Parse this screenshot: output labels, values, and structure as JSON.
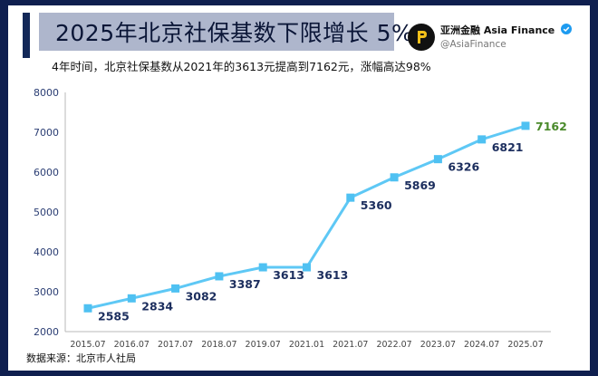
{
  "header": {
    "title": "2025年北京社保基数下限增长 5%",
    "subtitle": "4年时间，北京社保基数从2021年的3613元提高到7162元，涨幅高达98%"
  },
  "brand": {
    "name": "亚洲金融 Asia Finance",
    "handle": "@AsiaFinance",
    "logo_icon": "asia-finance-logo-icon",
    "verified_icon": "verified-badge-icon"
  },
  "footer": {
    "source": "数据来源：北京市人社局"
  },
  "colors": {
    "background": "#0f1f4f",
    "line": "#5ec8f5",
    "point": "#4fc1f2",
    "label": "#1c2e5e",
    "highlight_label": "#4a8a2b"
  },
  "chart_data": {
    "type": "line",
    "title": "",
    "xlabel": "",
    "ylabel": "",
    "ylim": [
      2000,
      8000
    ],
    "yticks": [
      "2000",
      "3000",
      "4000",
      "5000",
      "6000",
      "7000",
      "8000"
    ],
    "grid": false,
    "categories": [
      "2015.07",
      "2016.07",
      "2017.07",
      "2018.07",
      "2019.07",
      "2021.01",
      "2021.07",
      "2022.07",
      "2023.07",
      "2024.07",
      "2025.07"
    ],
    "series": [
      {
        "values": [
          2585,
          2834,
          3082,
          3387,
          3613,
          3613,
          5360,
          5869,
          6326,
          6821,
          7162
        ],
        "labels": [
          "2585",
          "2834",
          "3082",
          "3387",
          "3613",
          "3613",
          "5360",
          "5869",
          "6326",
          "6821",
          "7162"
        ]
      }
    ]
  }
}
